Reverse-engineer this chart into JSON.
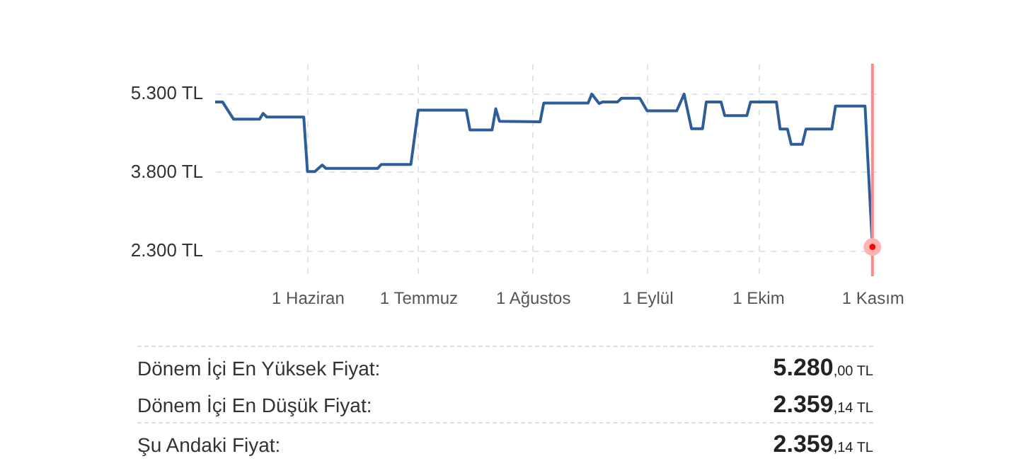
{
  "chart_data": {
    "type": "line",
    "xlim": [
      "--05-07",
      "--11-02"
    ],
    "xticks": [
      {
        "value": "--06-01",
        "label": "1 Haziran"
      },
      {
        "value": "--07-01",
        "label": "1 Temmuz"
      },
      {
        "value": "--08-01",
        "label": "1 Ağustos"
      },
      {
        "value": "--09-01",
        "label": "1 Eylül"
      },
      {
        "value": "--10-01",
        "label": "1 Ekim"
      },
      {
        "value": "--11-01",
        "label": "1 Kasım"
      }
    ],
    "ylim": [
      1800,
      5860
    ],
    "yticks": [
      {
        "value": 2300,
        "label": "2.300 TL"
      },
      {
        "value": 3800,
        "label": "3.800 TL"
      },
      {
        "value": 5300,
        "label": "5.300 TL"
      }
    ],
    "grid": true,
    "series": [
      {
        "type": "line",
        "color": "#2e5e99",
        "x": [
          "--05-07",
          "--05-09",
          "--05-12",
          "--05-19",
          "--05-20",
          "--05-21",
          "--05-31",
          "--06-01",
          "--06-03",
          "--06-05",
          "--06-06",
          "--06-20",
          "--06-21",
          "--06-29",
          "--07-01",
          "--07-14",
          "--07-15",
          "--07-21",
          "--07-22",
          "--07-23",
          "--08-03",
          "--08-04",
          "--08-16",
          "--08-17",
          "--08-19",
          "--08-20",
          "--08-24",
          "--08-25",
          "--08-30",
          "--09-01",
          "--09-09",
          "--09-11",
          "--09-13",
          "--09-16",
          "--09-17",
          "--09-21",
          "--09-22",
          "--09-28",
          "--09-29",
          "--10-06",
          "--10-07",
          "--10-09",
          "--10-10",
          "--10-13",
          "--10-14",
          "--10-21",
          "--10-22",
          "--10-30",
          "--11-01"
        ],
        "values": [
          5130,
          5130,
          4800,
          4800,
          4910,
          4840,
          4840,
          3800,
          3800,
          3925,
          3860,
          3860,
          3935,
          3935,
          4975,
          4975,
          4595,
          4595,
          5000,
          4760,
          4750,
          5110,
          5110,
          5280,
          5100,
          5130,
          5130,
          5200,
          5200,
          4960,
          4960,
          5280,
          4620,
          4620,
          5130,
          5130,
          4870,
          4870,
          5130,
          5130,
          4610,
          4610,
          4320,
          4320,
          4610,
          4610,
          5050,
          5050,
          2359.14
        ]
      },
      {
        "type": "scatter",
        "color": "#ff0000",
        "x": [
          "--11-01"
        ],
        "values": [
          2359.14
        ]
      }
    ],
    "ref_lines": [
      {
        "axis": "x",
        "value": "--11-01",
        "color": "#ff8a8a"
      }
    ],
    "annotations": [
      "Dönem İçi En Yüksek Fiyat:",
      "5.280,00 TL",
      "Dönem İçi En Düşük Fiyat:",
      "2.359,14 TL",
      "Şu Andaki Fiyat:",
      "2.359,14 TL"
    ]
  }
}
